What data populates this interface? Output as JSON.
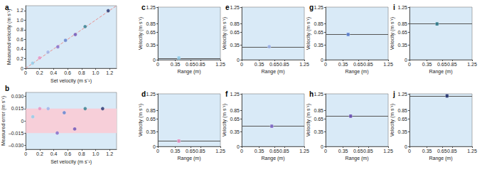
{
  "chart_data": [
    {
      "panel": "a",
      "type": "scatter",
      "x": [
        0.1,
        0.2,
        0.32,
        0.46,
        0.57,
        0.71,
        0.85,
        1.18
      ],
      "values": [
        0.105,
        0.215,
        0.335,
        0.445,
        0.58,
        0.7,
        0.865,
        1.195
      ],
      "colors": [
        "#8fcbe8",
        "#e58fc0",
        "#9ab0e8",
        "#8068c8",
        "#5b7fcf",
        "#6a4fb5",
        "#2d7a8c",
        "#1f2f6e"
      ],
      "reference_line": {
        "x": [
          0,
          1.3
        ],
        "y": [
          0,
          1.3
        ],
        "color": "#e8908f",
        "line_style": "dashed"
      },
      "xlabel": "Set velocity (m s⁻¹)",
      "ylabel": "Measured velocity (m s⁻¹)",
      "xlim": [
        0,
        1.3
      ],
      "ylim": [
        0,
        1.3
      ],
      "xticks": [
        0,
        0.2,
        0.4,
        0.6,
        0.8,
        {
          "value": 1,
          "label": "1.0"
        },
        1.2
      ],
      "yticks": [
        0,
        0.2,
        0.4,
        0.6,
        0.8,
        {
          "value": 1,
          "label": "1.0"
        },
        1.2
      ],
      "grid": false
    },
    {
      "panel": "b",
      "type": "scatter",
      "x": [
        0.1,
        0.2,
        0.32,
        0.45,
        0.55,
        0.7,
        0.85,
        1.1
      ],
      "values": [
        0.005,
        0.015,
        0.015,
        -0.015,
        0.01,
        -0.01,
        0.015,
        0.015
      ],
      "colors": [
        "#8fcbe8",
        "#e58fc0",
        "#9ab0e8",
        "#8068c8",
        "#5b7fcf",
        "#6a4fb5",
        "#2d7a8c",
        "#1f2f6e"
      ],
      "band": {
        "from": -0.015,
        "to": 0.015,
        "color": "#f7cfd9"
      },
      "xlabel": "Set velocity (m s⁻¹)",
      "ylabel": "Measured error (m s⁻¹)",
      "xlim": [
        0,
        1.3
      ],
      "ylim": [
        -0.035,
        0.035
      ],
      "xticks": [
        0,
        0.2,
        0.4,
        0.6,
        0.8,
        {
          "value": 1,
          "label": "1.0"
        },
        1.2
      ],
      "yticks": [
        {
          "value": -0.03,
          "label": "–0.030"
        },
        {
          "value": -0.015,
          "label": "–0.015"
        },
        0,
        0.015,
        {
          "value": 0.03,
          "label": "0.030"
        }
      ],
      "grid": false
    },
    {
      "panel": "c",
      "type": "scatter",
      "x": [
        0.42
      ],
      "values": [
        0.04
      ],
      "errors": [
        0.03
      ],
      "color": "#8fcbe8",
      "reference_line": {
        "y": 0.03,
        "color": "#555555"
      },
      "xlabel": "Range (m)",
      "ylabel": "Velocity (m s⁻¹)",
      "xlim": [
        0,
        1.25
      ],
      "ylim": [
        0,
        1.25
      ],
      "xticks": [
        0,
        0.35,
        0.65,
        0.85,
        1.25
      ],
      "yticks": [
        0,
        0.35,
        0.65,
        0.85,
        1.25
      ],
      "grid": false
    },
    {
      "panel": "d",
      "type": "scatter",
      "x": [
        0.42
      ],
      "values": [
        0.13
      ],
      "errors": [
        0.03
      ],
      "color": "#e58fc0",
      "reference_line": {
        "y": 0.13,
        "color": "#555555"
      },
      "xlabel": "Range (m)",
      "ylabel": "Velocity (m s⁻¹)",
      "xlim": [
        0,
        1.25
      ],
      "ylim": [
        0,
        1.25
      ],
      "xticks": [
        0,
        0.35,
        0.65,
        0.85,
        1.25
      ],
      "yticks": [
        0,
        0.35,
        0.65,
        0.85,
        1.25
      ],
      "grid": false
    },
    {
      "panel": "e",
      "type": "scatter",
      "x": [
        0.55
      ],
      "values": [
        0.31
      ],
      "errors": [
        0.02
      ],
      "color": "#9ab0e8",
      "reference_line": {
        "y": 0.3,
        "color": "#555555"
      },
      "xlabel": "Range (m)",
      "ylabel": "Velocity (m s⁻¹)",
      "xlim": [
        0,
        1.25
      ],
      "ylim": [
        0,
        1.25
      ],
      "xticks": [
        0,
        0.35,
        0.65,
        0.85,
        1.25
      ],
      "yticks": [
        0,
        0.35,
        0.65,
        0.85,
        1.25
      ],
      "grid": false
    },
    {
      "panel": "f",
      "type": "scatter",
      "x": [
        0.6
      ],
      "values": [
        0.48
      ],
      "errors": [
        0.03
      ],
      "color": "#8068c8",
      "reference_line": {
        "y": 0.48,
        "color": "#555555"
      },
      "xlabel": "Range (m)",
      "ylabel": "Velocity (m s⁻¹)",
      "xlim": [
        0,
        1.25
      ],
      "ylim": [
        0,
        1.25
      ],
      "xticks": [
        0,
        0.35,
        0.65,
        0.85,
        1.25
      ],
      "yticks": [
        0,
        0.35,
        0.65,
        0.85,
        1.25
      ],
      "grid": false
    },
    {
      "panel": "g",
      "type": "scatter",
      "x": [
        0.45
      ],
      "values": [
        0.6
      ],
      "errors": [
        0.03
      ],
      "color": "#5b7fcf",
      "reference_line": {
        "y": 0.6,
        "color": "#555555"
      },
      "xlabel": "Range (m)",
      "ylabel": "Velocity (m s⁻¹)",
      "xlim": [
        0,
        1.25
      ],
      "ylim": [
        0,
        1.25
      ],
      "xticks": [
        0,
        0.35,
        0.65,
        0.85,
        1.25
      ],
      "yticks": [
        0,
        0.35,
        0.65,
        0.85,
        1.25
      ],
      "grid": false
    },
    {
      "panel": "h",
      "type": "scatter",
      "x": [
        0.5
      ],
      "values": [
        0.72
      ],
      "errors": [
        0.03
      ],
      "color": "#6a4fb5",
      "reference_line": {
        "y": 0.73,
        "color": "#555555"
      },
      "xlabel": "Range (m)",
      "ylabel": "Velocity (m s⁻¹)",
      "xlim": [
        0,
        1.25
      ],
      "ylim": [
        0,
        1.25
      ],
      "xticks": [
        0,
        0.35,
        0.65,
        0.85,
        1.25
      ],
      "yticks": [
        0,
        0.35,
        0.65,
        0.85,
        1.25
      ],
      "grid": false
    },
    {
      "panel": "i",
      "type": "scatter",
      "x": [
        0.55
      ],
      "values": [
        0.85
      ],
      "errors": [
        0.03
      ],
      "color": "#2d7a8c",
      "reference_line": {
        "y": 0.85,
        "color": "#555555"
      },
      "xlabel": "Range (m)",
      "ylabel": "Velocity (m s⁻¹)",
      "xlim": [
        0,
        1.25
      ],
      "ylim": [
        0,
        1.25
      ],
      "xticks": [
        0,
        0.35,
        0.65,
        0.85,
        1.25
      ],
      "yticks": [
        0,
        0.35,
        0.65,
        0.85,
        1.25
      ],
      "grid": false
    },
    {
      "panel": "j",
      "type": "scatter",
      "x": [
        0.75
      ],
      "values": [
        1.2
      ],
      "errors": [
        0.03
      ],
      "color": "#1f2f6e",
      "reference_line": {
        "y": 1.2,
        "color": "#555555"
      },
      "xlabel": "Range (m)",
      "ylabel": "Velocity (m s⁻¹)",
      "xlim": [
        0,
        1.25
      ],
      "ylim": [
        0,
        1.25
      ],
      "xticks": [
        0,
        0.35,
        0.65,
        0.85,
        1.25
      ],
      "yticks": [
        0,
        0.35,
        0.65,
        0.85,
        1.25
      ],
      "grid": false
    }
  ]
}
